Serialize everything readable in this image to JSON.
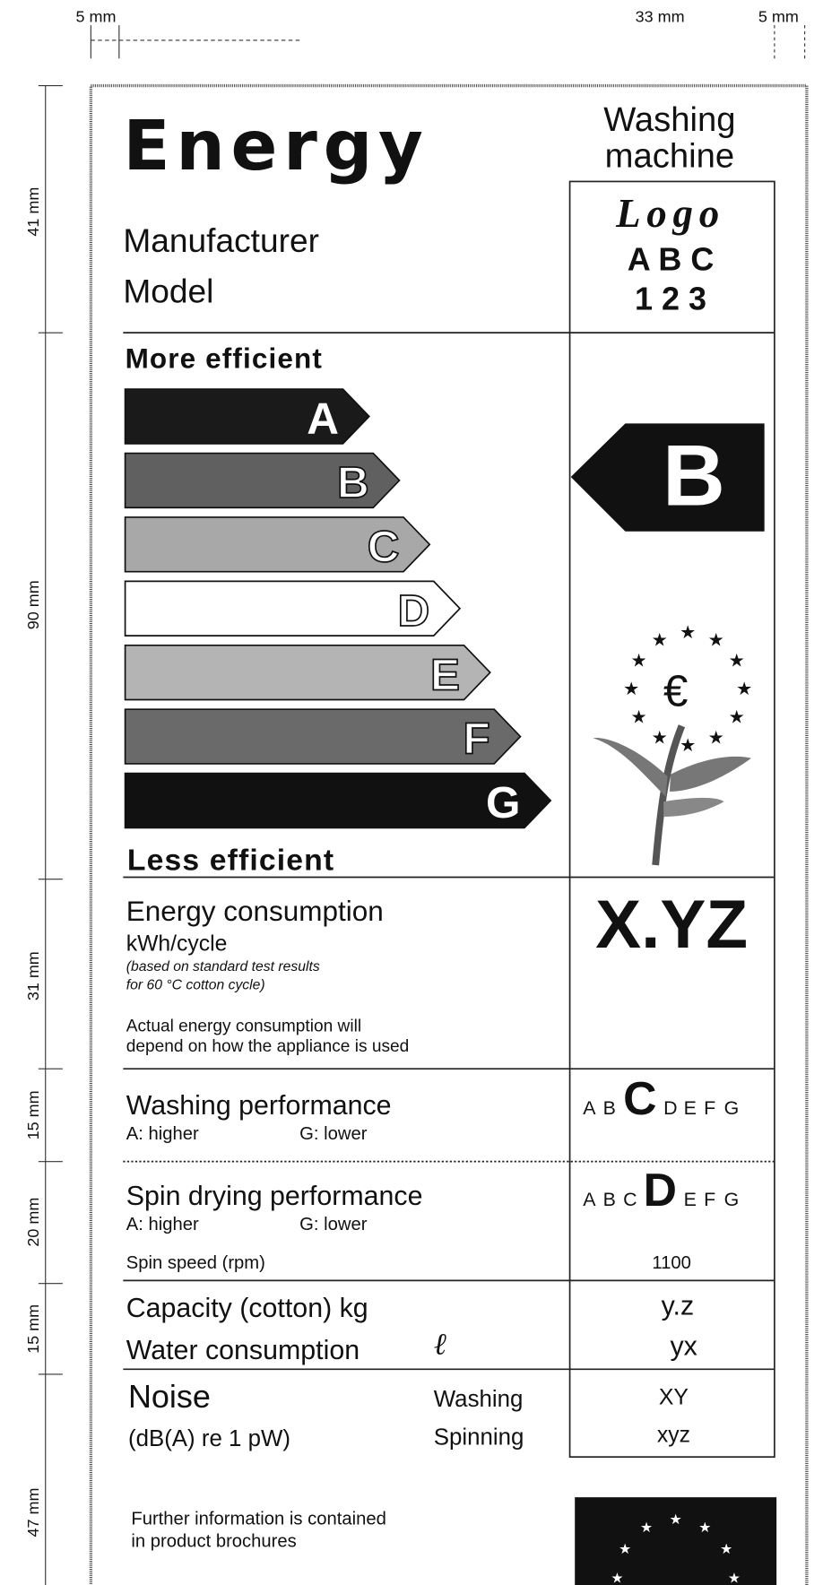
{
  "dimensions": {
    "top": [
      "5 mm",
      "33 mm",
      "5 mm"
    ],
    "left": [
      "41 mm",
      "90 mm",
      "31 mm",
      "15 mm",
      "20 mm",
      "15 mm",
      "47 mm"
    ]
  },
  "header": {
    "title": "Energy",
    "appliance": [
      "Washing",
      "machine"
    ],
    "manufacturer": "Manufacturer",
    "model": "Model",
    "logo": [
      "Logo",
      "A B C",
      "1 2 3"
    ]
  },
  "scale": {
    "top": "More efficient",
    "bottom": "Less efficient",
    "classes": [
      "A",
      "B",
      "C",
      "D",
      "E",
      "F",
      "G"
    ],
    "rating": "B"
  },
  "energy": {
    "title": "Energy consumption",
    "unit": "kWh/cycle",
    "note": [
      "(based on standard test results",
      "for 60 °C cotton cycle)"
    ],
    "actual": [
      "Actual energy consumption will",
      "depend on how the appliance is used"
    ],
    "value": "X.YZ"
  },
  "washing": {
    "title": "Washing performance",
    "higher": "A: higher",
    "lower": "G: lower",
    "rating": "C"
  },
  "spin": {
    "title": "Spin drying performance",
    "higher": "A: higher",
    "lower": "G: lower",
    "rating": "D",
    "speed_label": "Spin speed (rpm)",
    "speed": "1100"
  },
  "capacity": {
    "label": "Capacity (cotton) kg",
    "value": "y.z"
  },
  "water": {
    "label": "Water consumption",
    "unit": "ℓ",
    "value": "yx"
  },
  "noise": {
    "label": "Noise",
    "unit": "(dB(A) re 1 pW)",
    "washing": "Washing",
    "washing_value": "XY",
    "spinning": "Spinning",
    "spinning_value": "xyz"
  },
  "footer": [
    "Further information is contained",
    "in product brochures"
  ]
}
